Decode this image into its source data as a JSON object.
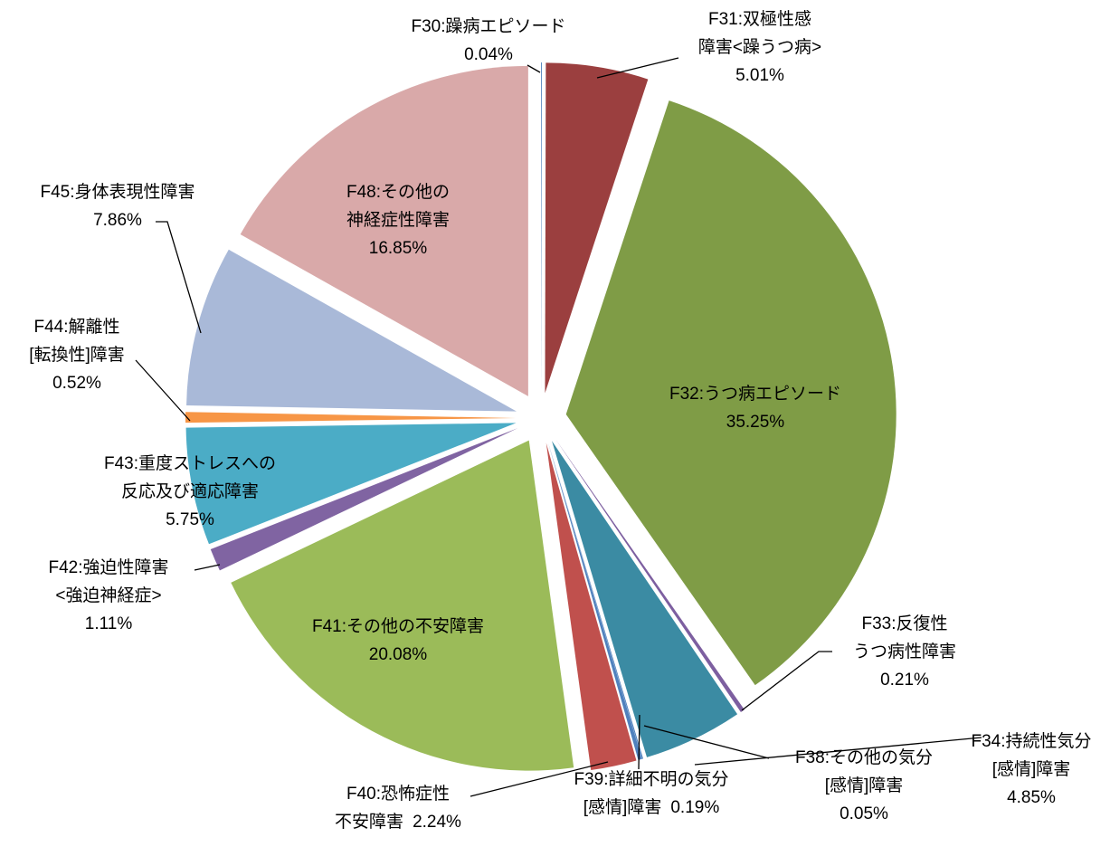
{
  "chart_data": {
    "type": "pie",
    "categories": [
      [
        "F30:躁病エピソード"
      ],
      [
        "F31:双極性感",
        "障害<躁うつ病>"
      ],
      [
        "F32:うつ病エピソード"
      ],
      [
        "F33:反復性",
        "うつ病性障害"
      ],
      [
        "F34:持続性気分",
        "[感情]障害"
      ],
      [
        "F38:その他の気分",
        "[感情]障害"
      ],
      [
        "F39:詳細不明の気分",
        "[感情]障害"
      ],
      [
        "F40:恐怖症性",
        "不安障害"
      ],
      [
        "F41:その他の不安障害"
      ],
      [
        "F42:強迫性障害",
        "<強迫神経症>"
      ],
      [
        "F43:重度ストレスへの",
        "反応及び適応障害"
      ],
      [
        "F44:解離性",
        "[転換性]障害"
      ],
      [
        "F45:身体表現性障害"
      ],
      [
        "F48:その他の",
        "神経症性障害"
      ]
    ],
    "values": [
      0.04,
      5.01,
      35.25,
      0.21,
      4.85,
      0.05,
      0.19,
      2.24,
      20.08,
      1.11,
      5.75,
      0.52,
      7.86,
      16.85
    ],
    "value_labels": [
      "0.04%",
      "5.01%",
      "35.25%",
      "0.21%",
      "4.85%",
      "0.05%",
      "0.19%",
      "2.24%",
      "20.08%",
      "1.11%",
      "5.75%",
      "0.52%",
      "7.86%",
      "16.85%"
    ],
    "colors": [
      "#4f81bd",
      "#9b3f3f",
      "#7f9c46",
      "#7d5fa0",
      "#3b8ba3",
      "#4f81bd",
      "#4f81bd",
      "#c0504d",
      "#9bbb59",
      "#8064a2",
      "#4bacc6",
      "#f79646",
      "#a9b9d8",
      "#d9a9a9"
    ]
  }
}
